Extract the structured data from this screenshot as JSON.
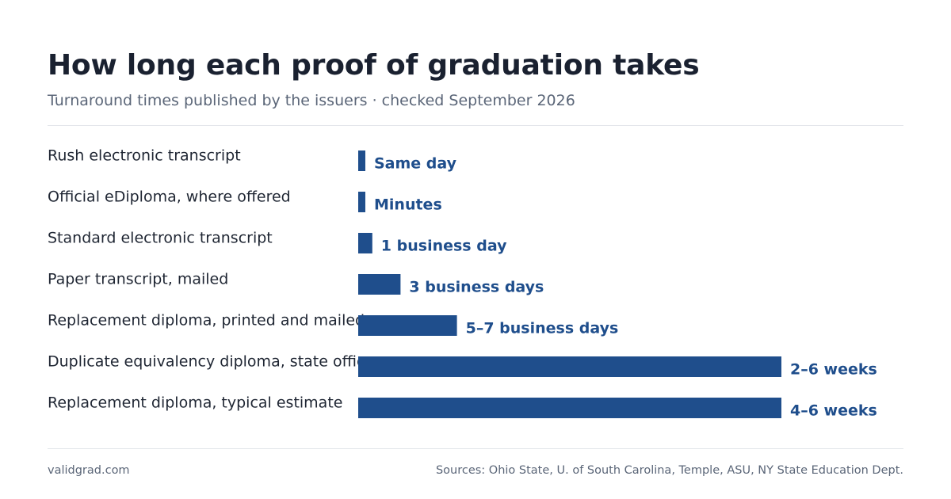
{
  "header": {
    "title": "How long each proof of graduation takes",
    "subtitle": "Turnaround times published by the issuers · checked September 2026"
  },
  "chart_data": {
    "type": "bar",
    "orientation": "horizontal",
    "categories": [
      "Rush electronic transcript",
      "Official eDiploma, where offered",
      "Standard electronic transcript",
      "Paper transcript, mailed",
      "Replacement diploma, printed and mailed",
      "Duplicate equivalency diploma, state office",
      "Replacement diploma, typical estimate"
    ],
    "values": [
      0.5,
      0.5,
      1,
      3,
      7,
      30,
      30
    ],
    "value_labels": [
      "Same day",
      "Minutes",
      "1 business day",
      "3 business days",
      "5–7 business days",
      "2–6 weeks",
      "4–6 weeks"
    ],
    "unit": "business days",
    "xlim": [
      0,
      30
    ],
    "grid": false,
    "legend": "none",
    "bar_color": "#1f4e8c"
  },
  "footer": {
    "site": "validgrad.com",
    "sources": "Sources: Ohio State, U. of South Carolina, Temple, ASU, NY State Education Dept."
  }
}
